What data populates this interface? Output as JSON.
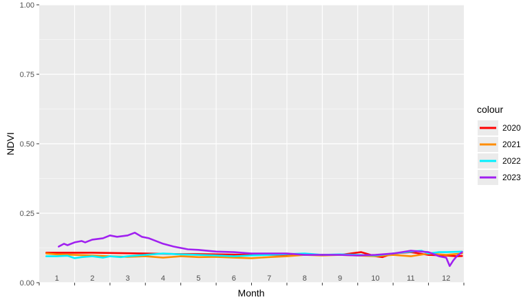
{
  "chart_data": {
    "type": "line",
    "title": "",
    "xlabel": "Month",
    "ylabel": "NDVI",
    "ylim": [
      0,
      1
    ],
    "yticks": [
      "0.00",
      "0.25",
      "0.50",
      "0.75",
      "1.00"
    ],
    "xlim": [
      0.5,
      12.5
    ],
    "categories": [
      "1",
      "2",
      "3",
      "4",
      "5",
      "6",
      "7",
      "8",
      "9",
      "10",
      "11",
      "12"
    ],
    "grid": true,
    "legend": {
      "title": "colour",
      "position": "right"
    },
    "series": [
      {
        "name": "2020",
        "color": "#ff0000",
        "x": [
          0.7,
          1.0,
          1.5,
          2.0,
          2.5,
          3.0,
          3.5,
          4.0,
          4.5,
          5.0,
          5.5,
          6.0,
          6.5,
          7.0,
          7.5,
          8.0,
          8.5,
          9.0,
          9.3,
          9.6,
          10.0,
          10.2,
          10.5,
          11.0,
          11.5,
          12.0,
          12.3,
          12.45
        ],
        "y": [
          0.108,
          0.108,
          0.108,
          0.108,
          0.107,
          0.106,
          0.105,
          0.104,
          0.103,
          0.103,
          0.102,
          0.101,
          0.1,
          0.1,
          0.1,
          0.1,
          0.1,
          0.1,
          0.105,
          0.11,
          0.095,
          0.092,
          0.105,
          0.11,
          0.1,
          0.098,
          0.095,
          0.096
        ]
      },
      {
        "name": "2021",
        "color": "#ff8c00",
        "x": [
          0.7,
          1.0,
          1.5,
          2.0,
          2.5,
          3.0,
          3.5,
          4.0,
          4.5,
          5.0,
          5.5,
          6.0,
          6.5,
          7.0,
          7.5,
          8.0,
          8.5,
          9.0,
          9.5,
          10.0,
          10.5,
          11.0,
          11.5,
          12.0,
          12.45
        ],
        "y": [
          0.105,
          0.102,
          0.1,
          0.098,
          0.095,
          0.093,
          0.095,
          0.09,
          0.095,
          0.092,
          0.093,
          0.09,
          0.088,
          0.092,
          0.095,
          0.1,
          0.098,
          0.1,
          0.098,
          0.095,
          0.1,
          0.095,
          0.105,
          0.1,
          0.105
        ]
      },
      {
        "name": "2022",
        "color": "#00f0ff",
        "x": [
          0.7,
          1.0,
          1.3,
          1.5,
          1.7,
          2.0,
          2.3,
          2.5,
          2.8,
          3.0,
          3.5,
          4.0,
          4.5,
          5.0,
          5.5,
          6.0,
          6.5,
          7.0,
          7.5,
          8.0,
          8.5,
          9.0,
          9.5,
          10.0,
          10.5,
          11.0,
          11.3,
          11.5,
          11.8,
          12.0,
          12.45
        ],
        "y": [
          0.095,
          0.095,
          0.097,
          0.088,
          0.092,
          0.095,
          0.09,
          0.095,
          0.092,
          0.095,
          0.1,
          0.105,
          0.102,
          0.1,
          0.098,
          0.095,
          0.098,
          0.1,
          0.103,
          0.105,
          0.1,
          0.102,
          0.1,
          0.098,
          0.105,
          0.112,
          0.115,
          0.105,
          0.11,
          0.11,
          0.112
        ]
      },
      {
        "name": "2023",
        "color": "#a020f0",
        "x": [
          1.05,
          1.2,
          1.3,
          1.5,
          1.7,
          1.8,
          2.0,
          2.3,
          2.5,
          2.7,
          3.0,
          3.2,
          3.4,
          3.6,
          3.8,
          4.0,
          4.3,
          4.5,
          4.7,
          5.0,
          5.5,
          6.0,
          6.5,
          7.0,
          7.5,
          8.0,
          8.5,
          9.0,
          9.5,
          10.0,
          10.5,
          11.0,
          11.5,
          11.8,
          12.0,
          12.1,
          12.2,
          12.3,
          12.45
        ],
        "y": [
          0.13,
          0.14,
          0.135,
          0.145,
          0.15,
          0.145,
          0.155,
          0.16,
          0.17,
          0.165,
          0.17,
          0.18,
          0.165,
          0.16,
          0.15,
          0.14,
          0.13,
          0.125,
          0.12,
          0.118,
          0.112,
          0.11,
          0.105,
          0.105,
          0.105,
          0.1,
          0.1,
          0.1,
          0.098,
          0.1,
          0.105,
          0.115,
          0.11,
          0.095,
          0.09,
          0.06,
          0.08,
          0.095,
          0.11
        ]
      }
    ]
  }
}
